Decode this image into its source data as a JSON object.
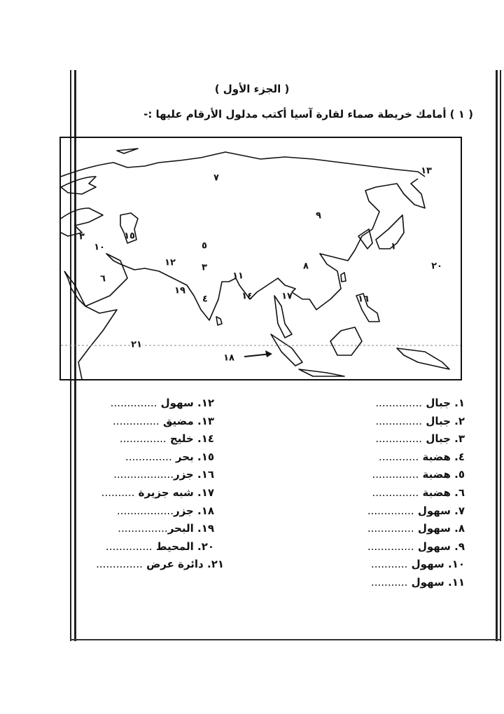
{
  "header": {
    "title": "( الجزء الأول )",
    "question": "( ١ ) أمامك خريطة صماء لقارة آسيا أكتب مدلول الأرقام عليها :-"
  },
  "map": {
    "labels": [
      "٧",
      "١٣",
      "٩",
      "١",
      "٢٠",
      "٥",
      "٨",
      "١٢",
      "٣",
      "١١",
      "١٥",
      "٣",
      "١٠",
      "٦",
      "١٩",
      "٤",
      "١٤",
      "١٧",
      "١٦",
      "٢١",
      "١٨"
    ]
  },
  "list_right": [
    {
      "num": "١.",
      "term": "جبال",
      "dots": ".............."
    },
    {
      "num": "٢.",
      "term": "جبال",
      "dots": ".............."
    },
    {
      "num": "٣.",
      "term": "جبال",
      "dots": ".............."
    },
    {
      "num": "٤.",
      "term": "هضبة",
      "dots": "............"
    },
    {
      "num": "٥.",
      "term": "هضبة",
      "dots": ".............."
    },
    {
      "num": "٦.",
      "term": "هضبة",
      "dots": ".............."
    },
    {
      "num": "٧.",
      "term": "سهول",
      "dots": ".............."
    },
    {
      "num": "٨.",
      "term": "سهول",
      "dots": ".............."
    },
    {
      "num": "٩.",
      "term": "سهول",
      "dots": ".............."
    },
    {
      "num": "١٠.",
      "term": "سهول",
      "dots": "..........."
    },
    {
      "num": "١١.",
      "term": "سهول",
      "dots": "..........."
    }
  ],
  "list_left": [
    {
      "num": "١٢.",
      "term": "سهول",
      "dots": ".............."
    },
    {
      "num": "١٣.",
      "term": "مضيق",
      "dots": ".............."
    },
    {
      "num": "١٤.",
      "term": "خليج",
      "dots": ".............."
    },
    {
      "num": "١٥.",
      "term": "بحر",
      "dots": ".............."
    },
    {
      "num": "١٦.",
      "term": "جزر",
      "dots": ".................."
    },
    {
      "num": "١٧.",
      "term": "شبه جزيرة",
      "dots": ".........."
    },
    {
      "num": "١٨.",
      "term": "جزر",
      "dots": "................."
    },
    {
      "num": "١٩.",
      "term": "البحر",
      "dots": "..............."
    },
    {
      "num": "٢٠.",
      "term": "المحيط",
      "dots": ".............."
    },
    {
      "num": "٢١.",
      "term": "دائرة عرض",
      "dots": ".............."
    }
  ]
}
